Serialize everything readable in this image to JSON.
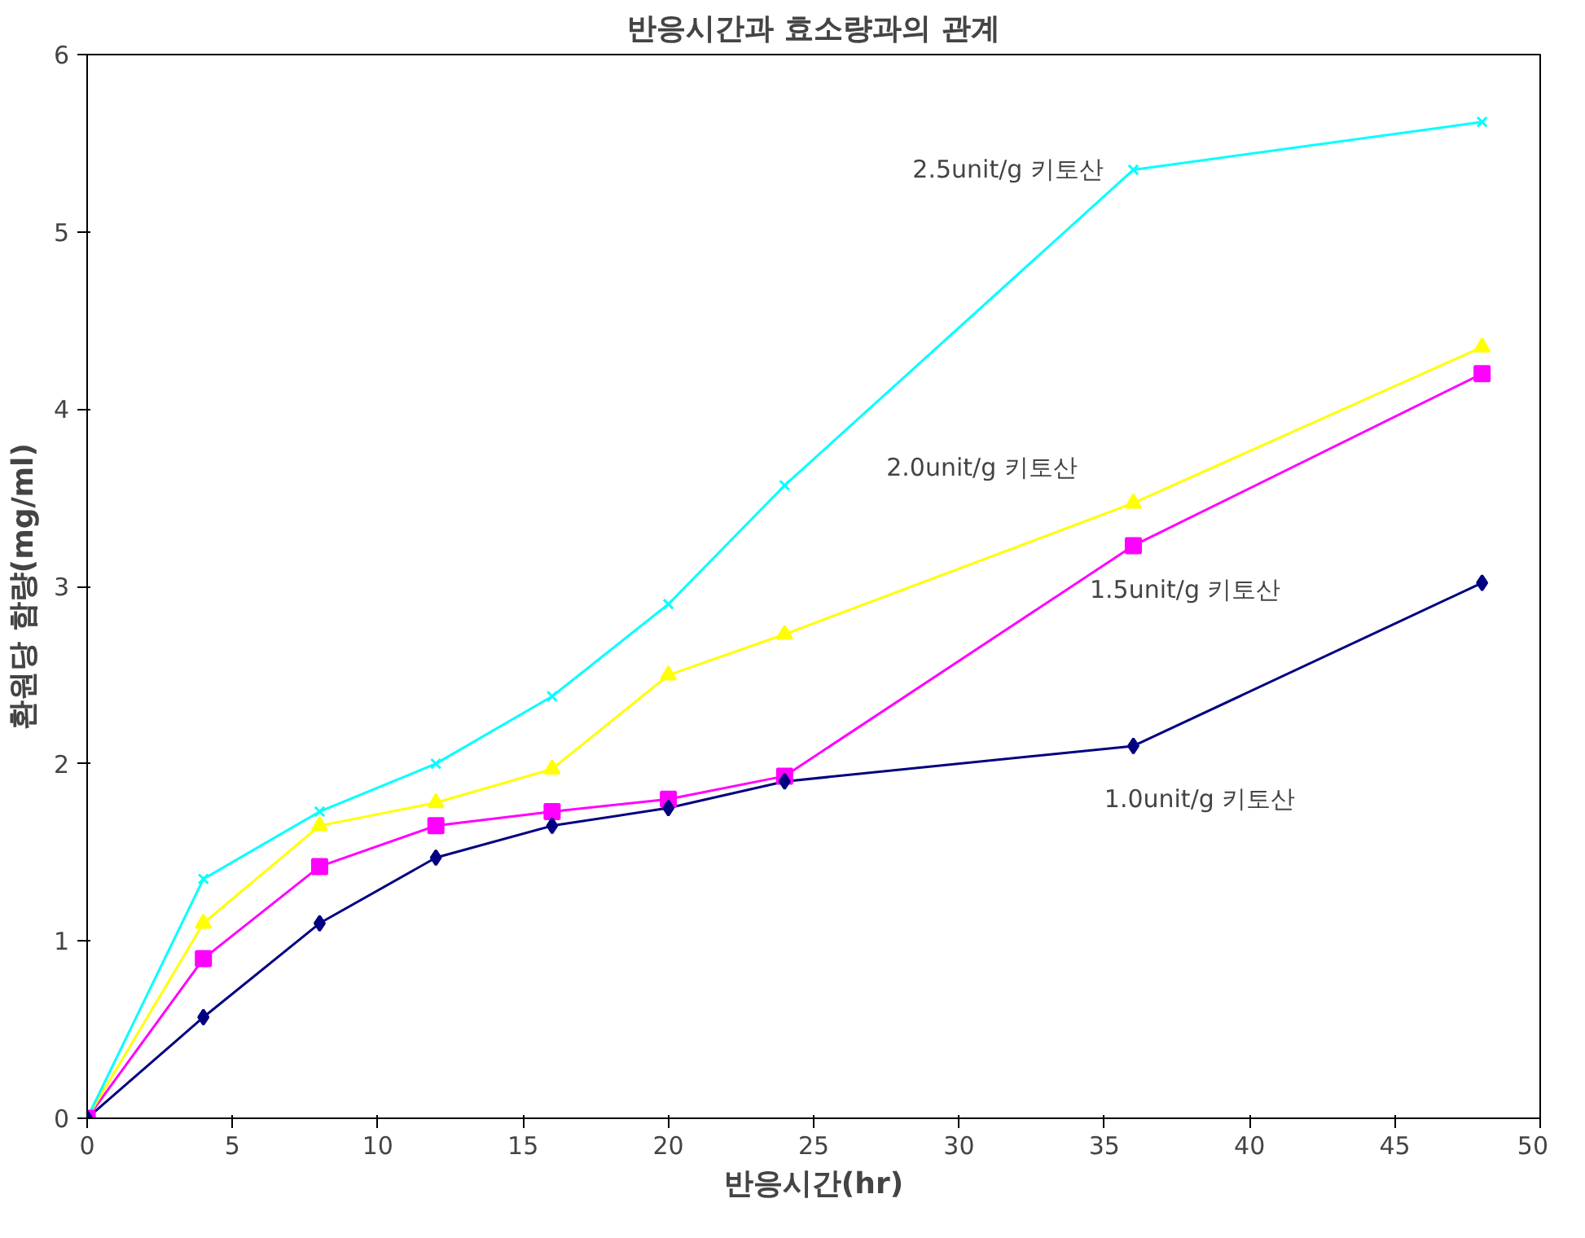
{
  "chart_data": {
    "type": "line",
    "title": "반응시간과 효소량과의 관계",
    "xlabel": "반응시간(hr)",
    "ylabel": "환원당 함량(mg/ml)",
    "x": [
      0,
      4,
      8,
      12,
      16,
      20,
      24,
      36,
      48
    ],
    "series": [
      {
        "name": "1.0unit/g 키토산",
        "color": "#000080",
        "marker": "diamond",
        "values": [
          0,
          0.57,
          1.1,
          1.47,
          1.65,
          1.75,
          1.9,
          2.1,
          3.02
        ]
      },
      {
        "name": "1.5unit/g 키토산",
        "color": "#ff00ff",
        "marker": "square",
        "values": [
          0,
          0.9,
          1.42,
          1.65,
          1.73,
          1.8,
          1.93,
          3.23,
          4.2
        ]
      },
      {
        "name": "2.0unit/g 키토산",
        "color": "#ffff00",
        "marker": "triangle",
        "values": [
          0,
          1.1,
          1.65,
          1.78,
          1.97,
          2.5,
          2.73,
          3.47,
          4.35
        ]
      },
      {
        "name": "2.5unit/g 키토산",
        "color": "#00ffff",
        "marker": "cross",
        "values": [
          0,
          1.35,
          1.73,
          2.0,
          2.38,
          2.9,
          3.57,
          5.35,
          5.62
        ]
      }
    ],
    "xlim": [
      0,
      50
    ],
    "xticks": [
      0,
      5,
      10,
      15,
      20,
      25,
      30,
      35,
      40,
      45,
      50
    ],
    "ylim": [
      0,
      6
    ],
    "yticks": [
      0,
      1,
      2,
      3,
      4,
      5,
      6
    ],
    "grid": false,
    "line_style": "solid"
  }
}
